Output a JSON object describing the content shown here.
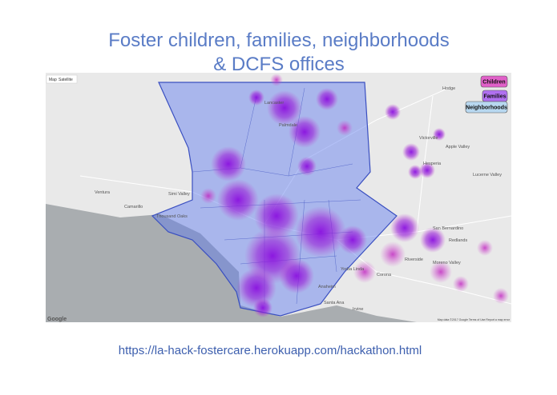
{
  "header": {
    "title_line1": "Foster children, families, neighborhoods",
    "title_line2": "& DCFS offices"
  },
  "map": {
    "type_controls": [
      "Map",
      "Satellite"
    ],
    "logo": "Google",
    "footer": "Map data ©2017 Google  Terms of Use  Report a map error",
    "labels": [
      "Ventura",
      "Camarillo",
      "Thousand Oaks",
      "Simi Valley",
      "Victorville",
      "Apple Valley",
      "Hesperia",
      "San Bernardino",
      "Redlands",
      "Riverside",
      "Moreno Valley",
      "Corona",
      "Anaheim",
      "Santa Ana",
      "Irvine",
      "Yorba Linda",
      "Lancaster",
      "Palmdale",
      "Hodge",
      "Lucerne Valley"
    ],
    "toggles": [
      "Children",
      "Families",
      "Neighborhoods"
    ]
  },
  "footer": {
    "url": "https://la-hack-fostercare.herokuapp.com/hackathon.html"
  }
}
